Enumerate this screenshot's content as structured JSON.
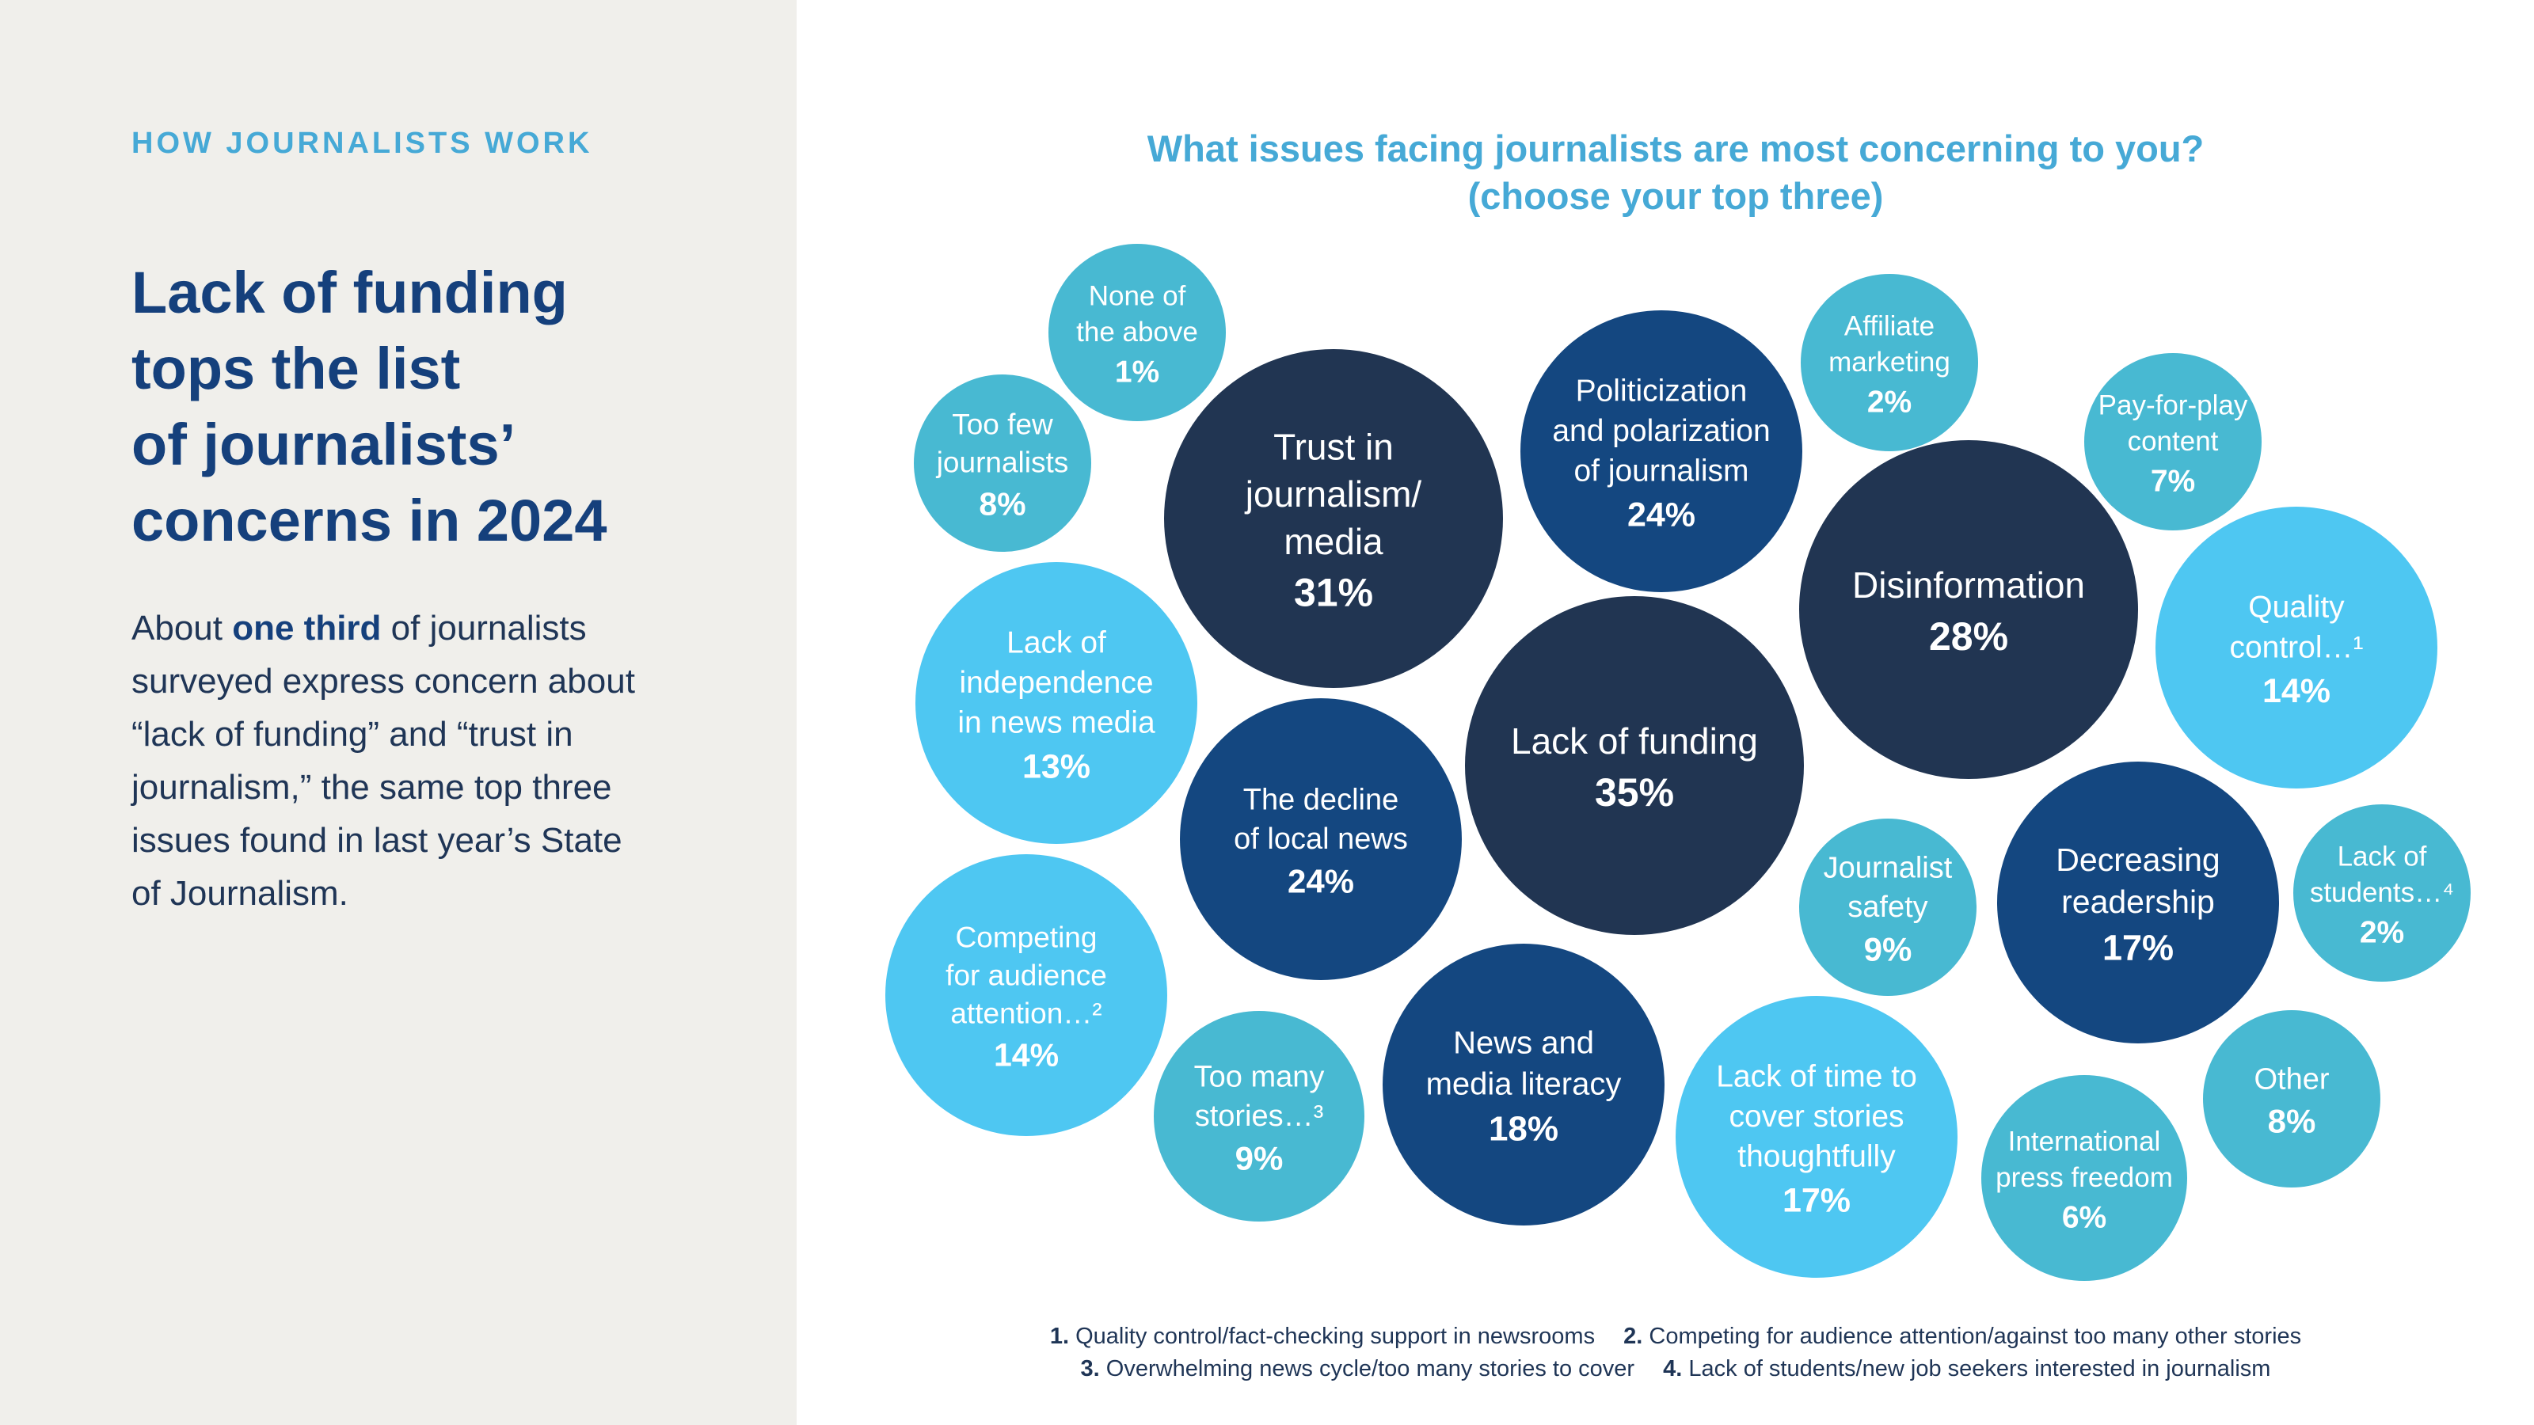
{
  "section_label": "HOW JOURNALISTS WORK",
  "headline": {
    "line1": "Lack of funding",
    "line2": "tops the list",
    "line3": "of journalists’",
    "line4": "concerns in 2024"
  },
  "body": {
    "lead": "About",
    "emphasis": "one third",
    "rest": " of journalists surveyed express concern about “lack of funding” and “trust in journalism,” the same top three issues found in last year’s State of Journalism."
  },
  "chart_data": {
    "type": "bubble",
    "title": {
      "line1": "What issues facing journalists are most concerning to you?",
      "line2": "(choose your top three)"
    },
    "unit": "%",
    "items": [
      {
        "label": "Lack of funding",
        "value": 35,
        "color": "#213552"
      },
      {
        "label": "Trust in journalism/ media",
        "value": 31,
        "color": "#213552"
      },
      {
        "label": "Disinformation",
        "value": 28,
        "color": "#213552"
      },
      {
        "label": "Politicization and polarization of journalism",
        "value": 24,
        "color": "#144780"
      },
      {
        "label": "The decline of local news",
        "value": 24,
        "color": "#144780"
      },
      {
        "label": "News and media literacy",
        "value": 18,
        "color": "#144780"
      },
      {
        "label": "Decreasing readership",
        "value": 17,
        "color": "#144780"
      },
      {
        "label": "Lack of time to cover stories thoughtfully",
        "value": 17,
        "color": "#4ec7f2"
      },
      {
        "label": "Quality control…¹",
        "value": 14,
        "color": "#4ec7f2"
      },
      {
        "label": "Competing for audience attention…²",
        "value": 14,
        "color": "#4ec7f2"
      },
      {
        "label": "Lack of independence in news media",
        "value": 13,
        "color": "#4ec7f2"
      },
      {
        "label": "Too many stories…³",
        "value": 9,
        "color": "#48b9d2"
      },
      {
        "label": "Journalist safety",
        "value": 9,
        "color": "#48b9d2"
      },
      {
        "label": "Too few journalists",
        "value": 8,
        "color": "#48b9d2"
      },
      {
        "label": "Other",
        "value": 8,
        "color": "#48b9d2"
      },
      {
        "label": "Pay-for-play content",
        "value": 7,
        "color": "#48b9d2"
      },
      {
        "label": "International press freedom",
        "value": 6,
        "color": "#48b9d2"
      },
      {
        "label": "Affiliate marketing",
        "value": 2,
        "color": "#48b9d2"
      },
      {
        "label": "Lack of students…⁴",
        "value": 2,
        "color": "#48b9d2"
      },
      {
        "label": "None of the above",
        "value": 1,
        "color": "#48b9d2"
      }
    ]
  },
  "footnotes": [
    {
      "num": "1.",
      "text": "Quality control/fact-checking support in newsrooms"
    },
    {
      "num": "2.",
      "text": "Competing for audience attention/against too many other stories"
    },
    {
      "num": "3.",
      "text": "Overwhelming news cycle/too many stories to cover"
    },
    {
      "num": "4.",
      "text": "Lack of students/new job seekers interested in journalism"
    }
  ]
}
